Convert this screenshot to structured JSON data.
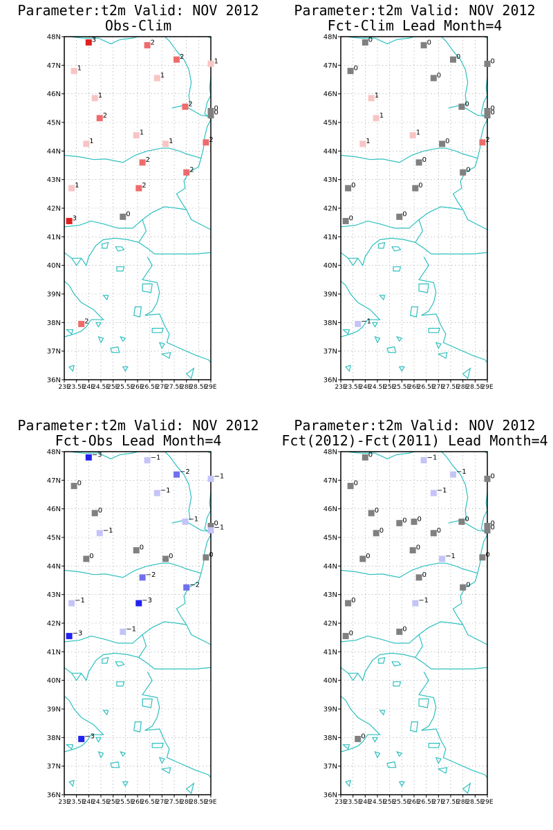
{
  "panels": [
    {
      "title_line1": "Parameter:t2m Valid: NOV 2012",
      "title_line2": "Obs-Clim",
      "stations": [
        {
          "lon": 24.0,
          "lat": 47.8,
          "value": 3
        },
        {
          "lon": 26.4,
          "lat": 47.7,
          "value": 2
        },
        {
          "lon": 27.6,
          "lat": 47.2,
          "value": 2
        },
        {
          "lon": 29.0,
          "lat": 47.05,
          "value": 1
        },
        {
          "lon": 23.4,
          "lat": 46.8,
          "value": 1
        },
        {
          "lon": 26.8,
          "lat": 46.55,
          "value": 1
        },
        {
          "lon": 24.25,
          "lat": 45.85,
          "value": 1
        },
        {
          "lon": 24.45,
          "lat": 45.15,
          "value": 2
        },
        {
          "lon": 27.95,
          "lat": 45.55,
          "value": 2
        },
        {
          "lon": 29.0,
          "lat": 45.4,
          "value": 0
        },
        {
          "lon": 29.0,
          "lat": 45.25,
          "value": 0
        },
        {
          "lon": 23.9,
          "lat": 44.25,
          "value": 1
        },
        {
          "lon": 25.95,
          "lat": 44.55,
          "value": 1
        },
        {
          "lon": 27.15,
          "lat": 44.25,
          "value": 1
        },
        {
          "lon": 28.8,
          "lat": 44.3,
          "value": 2
        },
        {
          "lon": 26.2,
          "lat": 43.6,
          "value": 2
        },
        {
          "lon": 28.0,
          "lat": 43.25,
          "value": 2
        },
        {
          "lon": 23.3,
          "lat": 42.7,
          "value": 1
        },
        {
          "lon": 26.05,
          "lat": 42.7,
          "value": 2
        },
        {
          "lon": 23.2,
          "lat": 41.55,
          "value": 3
        },
        {
          "lon": 25.4,
          "lat": 41.7,
          "value": 0
        },
        {
          "lon": 23.7,
          "lat": 37.95,
          "value": 2
        }
      ]
    },
    {
      "title_line1": "Parameter:t2m Valid: NOV 2012",
      "title_line2": "Fct-Clim Lead Month=4",
      "stations": [
        {
          "lon": 24.0,
          "lat": 47.8,
          "value": 0
        },
        {
          "lon": 26.4,
          "lat": 47.7,
          "value": 0
        },
        {
          "lon": 27.6,
          "lat": 47.2,
          "value": 0
        },
        {
          "lon": 29.0,
          "lat": 47.05,
          "value": 0
        },
        {
          "lon": 23.4,
          "lat": 46.8,
          "value": 0
        },
        {
          "lon": 26.8,
          "lat": 46.55,
          "value": 0
        },
        {
          "lon": 24.25,
          "lat": 45.85,
          "value": 1
        },
        {
          "lon": 24.45,
          "lat": 45.15,
          "value": 1
        },
        {
          "lon": 27.95,
          "lat": 45.55,
          "value": 0
        },
        {
          "lon": 29.0,
          "lat": 45.4,
          "value": 0
        },
        {
          "lon": 29.0,
          "lat": 45.25,
          "value": 0
        },
        {
          "lon": 23.9,
          "lat": 44.25,
          "value": 1
        },
        {
          "lon": 25.95,
          "lat": 44.55,
          "value": 1
        },
        {
          "lon": 27.15,
          "lat": 44.25,
          "value": 0
        },
        {
          "lon": 28.8,
          "lat": 44.3,
          "value": 2
        },
        {
          "lon": 26.2,
          "lat": 43.6,
          "value": 0
        },
        {
          "lon": 28.0,
          "lat": 43.25,
          "value": 0
        },
        {
          "lon": 23.3,
          "lat": 42.7,
          "value": 0
        },
        {
          "lon": 26.05,
          "lat": 42.7,
          "value": 0
        },
        {
          "lon": 23.2,
          "lat": 41.55,
          "value": 0
        },
        {
          "lon": 25.4,
          "lat": 41.7,
          "value": 0
        },
        {
          "lon": 23.7,
          "lat": 37.95,
          "value": -1
        }
      ]
    },
    {
      "title_line1": "Parameter:t2m Valid: NOV 2012",
      "title_line2": "Fct-Obs Lead Month=4",
      "stations": [
        {
          "lon": 24.0,
          "lat": 47.8,
          "value": -3
        },
        {
          "lon": 26.4,
          "lat": 47.7,
          "value": -1
        },
        {
          "lon": 27.6,
          "lat": 47.2,
          "value": -2
        },
        {
          "lon": 29.0,
          "lat": 47.05,
          "value": -1
        },
        {
          "lon": 23.4,
          "lat": 46.8,
          "value": 0
        },
        {
          "lon": 26.8,
          "lat": 46.55,
          "value": -1
        },
        {
          "lon": 24.25,
          "lat": 45.85,
          "value": 0
        },
        {
          "lon": 24.45,
          "lat": 45.15,
          "value": -1
        },
        {
          "lon": 27.95,
          "lat": 45.55,
          "value": -1
        },
        {
          "lon": 29.0,
          "lat": 45.4,
          "value": 0
        },
        {
          "lon": 29.0,
          "lat": 45.25,
          "value": -1
        },
        {
          "lon": 23.9,
          "lat": 44.25,
          "value": 0
        },
        {
          "lon": 25.95,
          "lat": 44.55,
          "value": 0
        },
        {
          "lon": 27.15,
          "lat": 44.25,
          "value": 0
        },
        {
          "lon": 28.8,
          "lat": 44.3,
          "value": 0
        },
        {
          "lon": 26.2,
          "lat": 43.6,
          "value": -2
        },
        {
          "lon": 28.0,
          "lat": 43.25,
          "value": -2
        },
        {
          "lon": 23.3,
          "lat": 42.7,
          "value": -1
        },
        {
          "lon": 26.05,
          "lat": 42.7,
          "value": -3
        },
        {
          "lon": 23.2,
          "lat": 41.55,
          "value": -3
        },
        {
          "lon": 25.4,
          "lat": 41.7,
          "value": -1
        },
        {
          "lon": 23.7,
          "lat": 37.95,
          "value": -3
        }
      ]
    },
    {
      "title_line1": "Parameter:t2m Valid: NOV 2012",
      "title_line2": "Fct(2012)-Fct(2011) Lead Month=4",
      "stations": [
        {
          "lon": 24.0,
          "lat": 47.8,
          "value": 0
        },
        {
          "lon": 26.4,
          "lat": 47.7,
          "value": -1
        },
        {
          "lon": 27.6,
          "lat": 47.2,
          "value": -1
        },
        {
          "lon": 29.0,
          "lat": 47.05,
          "value": 0
        },
        {
          "lon": 23.4,
          "lat": 46.8,
          "value": 0
        },
        {
          "lon": 26.8,
          "lat": 46.55,
          "value": -1
        },
        {
          "lon": 24.25,
          "lat": 45.85,
          "value": 0
        },
        {
          "lon": 24.45,
          "lat": 45.15,
          "value": 0
        },
        {
          "lon": 25.4,
          "lat": 45.5,
          "value": 0
        },
        {
          "lon": 26.0,
          "lat": 45.55,
          "value": 0
        },
        {
          "lon": 26.8,
          "lat": 45.15,
          "value": 0
        },
        {
          "lon": 27.95,
          "lat": 45.55,
          "value": 0
        },
        {
          "lon": 29.0,
          "lat": 45.4,
          "value": 0
        },
        {
          "lon": 29.0,
          "lat": 45.25,
          "value": 0
        },
        {
          "lon": 23.9,
          "lat": 44.25,
          "value": 0
        },
        {
          "lon": 25.95,
          "lat": 44.55,
          "value": 0
        },
        {
          "lon": 27.15,
          "lat": 44.25,
          "value": -1
        },
        {
          "lon": 28.8,
          "lat": 44.3,
          "value": 0
        },
        {
          "lon": 26.2,
          "lat": 43.6,
          "value": 0
        },
        {
          "lon": 28.0,
          "lat": 43.25,
          "value": 0
        },
        {
          "lon": 23.3,
          "lat": 42.7,
          "value": 0
        },
        {
          "lon": 26.05,
          "lat": 42.7,
          "value": -1
        },
        {
          "lon": 23.2,
          "lat": 41.55,
          "value": 0
        },
        {
          "lon": 25.4,
          "lat": 41.7,
          "value": 0
        },
        {
          "lon": 23.7,
          "lat": 37.95,
          "value": 0
        }
      ]
    }
  ],
  "axes": {
    "lat_labels": [
      "36N",
      "37N",
      "38N",
      "39N",
      "40N",
      "41N",
      "42N",
      "43N",
      "44N",
      "45N",
      "46N",
      "47N",
      "48N"
    ],
    "lon_labels": [
      "23E",
      "23.5E",
      "24E",
      "24.5E",
      "25E",
      "25.5E",
      "26E",
      "26.5E",
      "27E",
      "27.5E",
      "28E",
      "28.5E",
      "29E"
    ],
    "lat_range": [
      36,
      48
    ],
    "lon_range": [
      23,
      29
    ]
  },
  "colors": {
    "coast": "#2dbfbf",
    "zero": "#808080",
    "pos1": "#f8c4c4",
    "pos2": "#ef6b6b",
    "pos3": "#e02020",
    "neg1": "#c4c4f8",
    "neg2": "#7070ee",
    "neg3": "#2222ee",
    "grid": "#999999"
  }
}
